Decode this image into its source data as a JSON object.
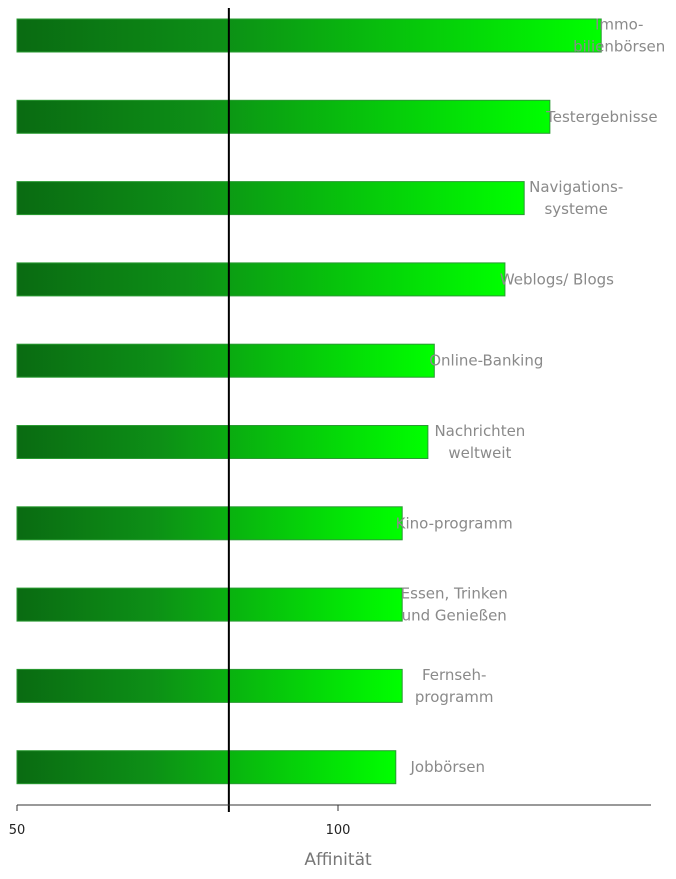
{
  "chart_data": {
    "type": "bar",
    "orientation": "horizontal",
    "title": "",
    "xlabel": "Affinität",
    "ylabel": "",
    "xlim": [
      50,
      150
    ],
    "xticks": [
      50,
      100
    ],
    "reference_line": 83,
    "grid": false,
    "legend": "none",
    "categories": [
      "Immo-\nbilienbörsen",
      "Testergebnisse",
      "Navigations-\nsysteme",
      "Weblogs/ Blogs",
      "Online-Banking",
      "Nachrichten\nweltweit",
      "Kino-programm",
      "Essen, Trinken\nund Genießen",
      "Fernseh-\nprogramm",
      "Jobbörsen"
    ],
    "values": [
      141,
      133,
      129,
      126,
      115,
      114,
      110,
      110,
      110,
      109
    ],
    "colors": {
      "bar_dark": "#0a6b12",
      "bar_light": "#00ff00",
      "bar_border": "#2a9a32",
      "label": "#8a8a8a",
      "axis": "#333333"
    }
  }
}
